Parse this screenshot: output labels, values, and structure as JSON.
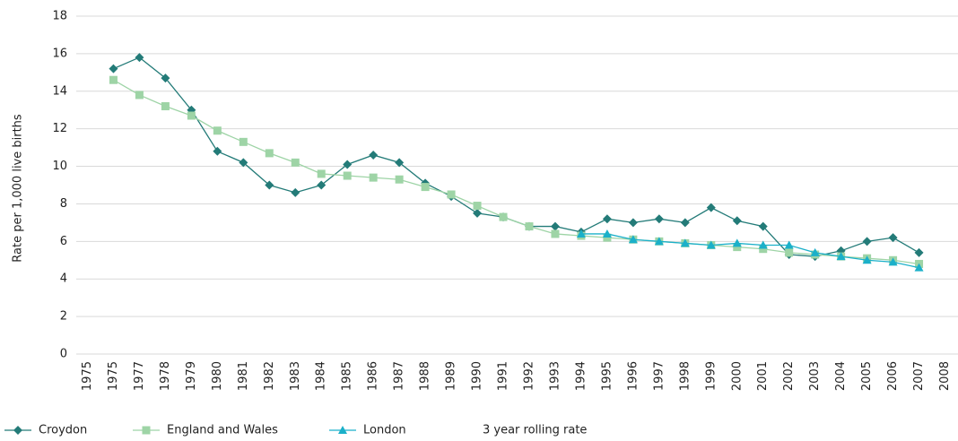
{
  "chart_data": {
    "type": "line",
    "y_label": "Rate per 1,000 live births",
    "legend_note": "3 year rolling rate",
    "categories": [
      "1975",
      "1975",
      "1977",
      "1978",
      "1979",
      "1980",
      "1981",
      "1982",
      "1983",
      "1984",
      "1985",
      "1986",
      "1987",
      "1988",
      "1989",
      "1990",
      "1991",
      "1992",
      "1993",
      "1994",
      "1995",
      "1996",
      "1997",
      "1998",
      "1999",
      "2000",
      "2001",
      "2002",
      "2003",
      "2004",
      "2005",
      "2006",
      "2007",
      "2008"
    ],
    "series": [
      {
        "name": "Croydon",
        "color": "#237b78",
        "marker": "diamond",
        "values": [
          null,
          15.2,
          15.8,
          14.7,
          13.0,
          10.8,
          10.2,
          9.0,
          8.6,
          9.0,
          10.1,
          10.6,
          10.2,
          9.1,
          8.4,
          7.5,
          7.3,
          6.8,
          6.8,
          6.5,
          7.2,
          7.0,
          7.2,
          7.0,
          7.8,
          7.1,
          6.8,
          5.3,
          5.2,
          5.5,
          6.0,
          6.2,
          5.4,
          null
        ]
      },
      {
        "name": "England and Wales",
        "color": "#9ed4a6",
        "marker": "square",
        "values": [
          null,
          14.6,
          13.8,
          13.2,
          12.7,
          11.9,
          11.3,
          10.7,
          10.2,
          9.6,
          9.5,
          9.4,
          9.3,
          8.9,
          8.5,
          7.9,
          7.3,
          6.8,
          6.4,
          6.3,
          6.2,
          6.1,
          6.0,
          5.9,
          5.8,
          5.7,
          5.6,
          5.4,
          5.3,
          5.2,
          5.1,
          5.0,
          4.8,
          null
        ]
      },
      {
        "name": "London",
        "color": "#1bb0c9",
        "marker": "triangle",
        "values": [
          null,
          null,
          null,
          null,
          null,
          null,
          null,
          null,
          null,
          null,
          null,
          null,
          null,
          null,
          null,
          null,
          null,
          null,
          null,
          6.4,
          6.4,
          6.1,
          6.0,
          5.9,
          5.8,
          5.9,
          5.8,
          5.8,
          5.4,
          5.2,
          5.0,
          4.9,
          4.6,
          null
        ]
      }
    ],
    "ylim": [
      0,
      18
    ],
    "yticks": [
      0,
      2,
      4,
      6,
      8,
      10,
      12,
      14,
      16,
      18
    ],
    "grid": true
  }
}
